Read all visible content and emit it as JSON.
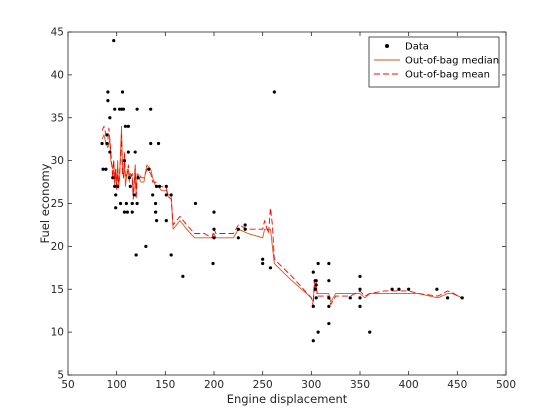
{
  "chart_data": {
    "type": "scatter",
    "title": "",
    "xlabel": "Engine displacement",
    "ylabel": "Fuel economy",
    "xlim": [
      50,
      500
    ],
    "ylim": [
      5,
      45
    ],
    "xticks": [
      50,
      100,
      150,
      200,
      250,
      300,
      350,
      400,
      450,
      500
    ],
    "yticks": [
      5,
      10,
      15,
      20,
      25,
      30,
      35,
      40,
      45
    ],
    "grid": false,
    "legend_position": "top-right",
    "series": [
      {
        "name": "Data",
        "kind": "scatter",
        "color": "#000000",
        "points": [
          [
            85,
            32
          ],
          [
            86,
            29
          ],
          [
            89,
            29
          ],
          [
            90,
            32
          ],
          [
            90,
            33
          ],
          [
            91,
            38
          ],
          [
            91,
            37
          ],
          [
            93,
            31
          ],
          [
            93,
            35
          ],
          [
            96,
            28
          ],
          [
            97,
            44
          ],
          [
            98,
            36
          ],
          [
            98,
            27
          ],
          [
            99,
            26
          ],
          [
            99,
            24.5
          ],
          [
            101,
            27
          ],
          [
            103,
            36
          ],
          [
            104,
            25
          ],
          [
            105,
            36
          ],
          [
            106,
            38
          ],
          [
            107,
            36
          ],
          [
            108,
            24
          ],
          [
            108,
            30
          ],
          [
            109,
            34
          ],
          [
            110,
            25
          ],
          [
            111,
            24
          ],
          [
            112,
            31
          ],
          [
            112,
            34
          ],
          [
            113,
            28
          ],
          [
            114,
            27
          ],
          [
            116,
            24
          ],
          [
            116,
            25
          ],
          [
            118,
            26
          ],
          [
            119,
            31
          ],
          [
            120,
            19
          ],
          [
            121,
            36
          ],
          [
            121,
            25
          ],
          [
            122,
            28
          ],
          [
            130,
            20
          ],
          [
            133,
            29
          ],
          [
            135,
            36
          ],
          [
            135,
            32
          ],
          [
            137,
            26
          ],
          [
            140,
            24
          ],
          [
            140,
            25
          ],
          [
            141,
            27
          ],
          [
            141,
            23
          ],
          [
            143,
            32
          ],
          [
            144,
            27
          ],
          [
            151,
            23
          ],
          [
            151,
            26
          ],
          [
            151,
            27
          ],
          [
            156,
            26
          ],
          [
            156,
            19
          ],
          [
            168,
            16.5
          ],
          [
            181,
            25
          ],
          [
            199,
            18
          ],
          [
            200,
            22
          ],
          [
            200,
            21
          ],
          [
            200,
            24
          ],
          [
            225,
            22
          ],
          [
            225,
            21
          ],
          [
            232,
            22
          ],
          [
            232,
            22.5
          ],
          [
            250,
            18
          ],
          [
            250,
            18.5
          ],
          [
            258,
            17.5
          ],
          [
            262,
            38
          ],
          [
            302,
            17
          ],
          [
            302,
            13
          ],
          [
            302,
            9
          ],
          [
            304,
            15
          ],
          [
            304,
            16
          ],
          [
            305,
            14
          ],
          [
            305,
            15.5
          ],
          [
            305,
            16
          ],
          [
            307,
            18
          ],
          [
            307,
            10
          ],
          [
            318,
            18
          ],
          [
            318,
            16
          ],
          [
            318,
            11
          ],
          [
            318,
            13
          ],
          [
            318,
            14
          ],
          [
            340,
            14
          ],
          [
            350,
            13
          ],
          [
            350,
            14
          ],
          [
            350,
            15
          ],
          [
            350,
            16.5
          ],
          [
            360,
            10
          ],
          [
            383,
            15
          ],
          [
            390,
            15
          ],
          [
            400,
            15
          ],
          [
            429,
            15
          ],
          [
            440,
            14
          ],
          [
            455,
            14
          ]
        ]
      },
      {
        "name": "Out-of-bag median",
        "kind": "line",
        "color": "#d95319",
        "points": [
          [
            85,
            32.5
          ],
          [
            87,
            33
          ],
          [
            89,
            32
          ],
          [
            91,
            31.5
          ],
          [
            93,
            32.5
          ],
          [
            94,
            30
          ],
          [
            96,
            29
          ],
          [
            97,
            30
          ],
          [
            98,
            27
          ],
          [
            99,
            29
          ],
          [
            100,
            27
          ],
          [
            101,
            30
          ],
          [
            102,
            27
          ],
          [
            103,
            28
          ],
          [
            104,
            31
          ],
          [
            105,
            34
          ],
          [
            106,
            29
          ],
          [
            107,
            28
          ],
          [
            108,
            30
          ],
          [
            109,
            27
          ],
          [
            111,
            29
          ],
          [
            112,
            29
          ],
          [
            113,
            27.5
          ],
          [
            114,
            28.5
          ],
          [
            116,
            28
          ],
          [
            117,
            26
          ],
          [
            118,
            27.5
          ],
          [
            119,
            29
          ],
          [
            120,
            26
          ],
          [
            121,
            28.5
          ],
          [
            123,
            28
          ],
          [
            125,
            27.5
          ],
          [
            128,
            27.5
          ],
          [
            131,
            29.5
          ],
          [
            135,
            29
          ],
          [
            137,
            28
          ],
          [
            140,
            27
          ],
          [
            143,
            27
          ],
          [
            146,
            26.5
          ],
          [
            151,
            26.5
          ],
          [
            153,
            26
          ],
          [
            156,
            26
          ],
          [
            158,
            22
          ],
          [
            165,
            23
          ],
          [
            172,
            22
          ],
          [
            180,
            21
          ],
          [
            190,
            21
          ],
          [
            198,
            21
          ],
          [
            200,
            21.5
          ],
          [
            202,
            21
          ],
          [
            220,
            21
          ],
          [
            225,
            22
          ],
          [
            235,
            21.5
          ],
          [
            250,
            21
          ],
          [
            252,
            22
          ],
          [
            258,
            22
          ],
          [
            262,
            18
          ],
          [
            280,
            16
          ],
          [
            300,
            14
          ],
          [
            302,
            13.5
          ],
          [
            303,
            15.5
          ],
          [
            304,
            15
          ],
          [
            305,
            15.5
          ],
          [
            306,
            14.5
          ],
          [
            318,
            14.5
          ],
          [
            320,
            13.5
          ],
          [
            325,
            14.5
          ],
          [
            340,
            14.5
          ],
          [
            350,
            14.5
          ],
          [
            355,
            14
          ],
          [
            360,
            14.5
          ],
          [
            375,
            14.5
          ],
          [
            400,
            14.5
          ],
          [
            410,
            14.5
          ],
          [
            430,
            14
          ],
          [
            440,
            14.5
          ],
          [
            445,
            14.5
          ],
          [
            455,
            14
          ]
        ]
      },
      {
        "name": "Out-of-bag mean",
        "kind": "line",
        "color": "#ff0000",
        "points": [
          [
            85,
            33.5
          ],
          [
            87,
            34
          ],
          [
            89,
            33
          ],
          [
            91,
            32.5
          ],
          [
            92,
            33.8
          ],
          [
            94,
            31
          ],
          [
            96,
            28
          ],
          [
            97,
            30
          ],
          [
            98,
            27.5
          ],
          [
            99,
            29
          ],
          [
            100,
            26.5
          ],
          [
            101,
            29
          ],
          [
            102,
            26.8
          ],
          [
            103,
            28.5
          ],
          [
            104,
            30.5
          ],
          [
            105,
            33
          ],
          [
            106,
            28.5
          ],
          [
            107,
            28
          ],
          [
            108,
            31
          ],
          [
            109,
            28
          ],
          [
            111,
            28.5
          ],
          [
            112,
            29.5
          ],
          [
            113,
            28
          ],
          [
            114,
            28
          ],
          [
            116,
            28.5
          ],
          [
            117,
            25.5
          ],
          [
            118,
            27
          ],
          [
            119,
            29.5
          ],
          [
            120,
            25.5
          ],
          [
            121,
            28
          ],
          [
            123,
            28.5
          ],
          [
            125,
            28
          ],
          [
            128,
            28
          ],
          [
            131,
            29
          ],
          [
            135,
            28.5
          ],
          [
            137,
            27.5
          ],
          [
            140,
            27.5
          ],
          [
            143,
            27
          ],
          [
            146,
            27
          ],
          [
            151,
            26.8
          ],
          [
            153,
            25.8
          ],
          [
            156,
            25.5
          ],
          [
            158,
            22.5
          ],
          [
            165,
            23.5
          ],
          [
            172,
            22.5
          ],
          [
            180,
            21.5
          ],
          [
            190,
            21.5
          ],
          [
            198,
            21
          ],
          [
            200,
            22
          ],
          [
            202,
            21.5
          ],
          [
            220,
            21.5
          ],
          [
            225,
            22.5
          ],
          [
            235,
            22
          ],
          [
            250,
            22
          ],
          [
            252,
            23
          ],
          [
            256,
            21.5
          ],
          [
            258,
            24.5
          ],
          [
            260,
            22.5
          ],
          [
            262,
            18.5
          ],
          [
            280,
            16.5
          ],
          [
            300,
            14
          ],
          [
            302,
            13
          ],
          [
            303,
            16
          ],
          [
            304,
            14.8
          ],
          [
            305,
            15.8
          ],
          [
            306,
            14.2
          ],
          [
            318,
            14.2
          ],
          [
            320,
            13.2
          ],
          [
            325,
            14.2
          ],
          [
            340,
            14.2
          ],
          [
            350,
            14.8
          ],
          [
            355,
            14.2
          ],
          [
            360,
            14.5
          ],
          [
            375,
            14.8
          ],
          [
            400,
            14.8
          ],
          [
            410,
            14.5
          ],
          [
            430,
            14.2
          ],
          [
            440,
            14.8
          ],
          [
            445,
            14.6
          ],
          [
            455,
            13.9
          ]
        ]
      }
    ]
  }
}
